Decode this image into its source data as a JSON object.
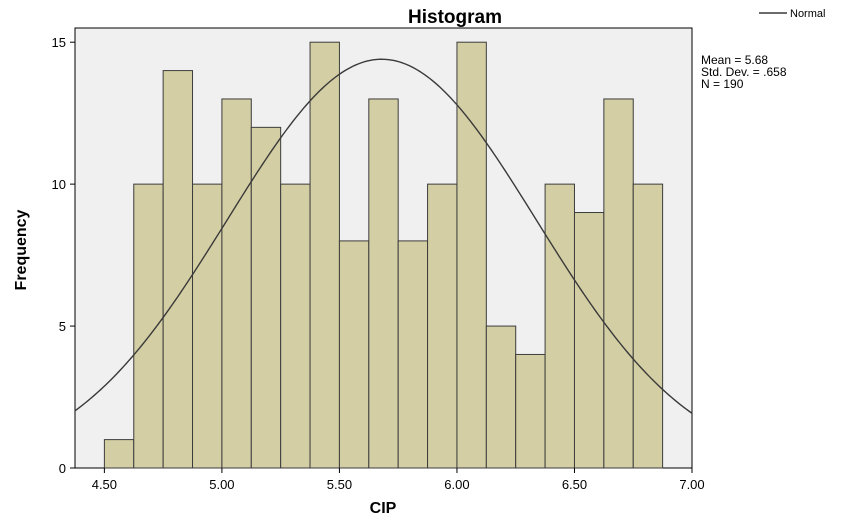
{
  "chart_data": {
    "type": "bar",
    "title": "Histogram",
    "xlabel": "CIP",
    "ylabel": "Frequency",
    "xlim": [
      4.375,
      7.0
    ],
    "ylim": [
      0,
      15.5
    ],
    "bin_width": 0.125,
    "bins": [
      {
        "start": 4.5,
        "end": 4.625,
        "count": 1
      },
      {
        "start": 4.625,
        "end": 4.75,
        "count": 10
      },
      {
        "start": 4.75,
        "end": 4.875,
        "count": 14
      },
      {
        "start": 4.875,
        "end": 5.0,
        "count": 10
      },
      {
        "start": 5.0,
        "end": 5.125,
        "count": 13
      },
      {
        "start": 5.125,
        "end": 5.25,
        "count": 12
      },
      {
        "start": 5.25,
        "end": 5.375,
        "count": 10
      },
      {
        "start": 5.375,
        "end": 5.5,
        "count": 15
      },
      {
        "start": 5.5,
        "end": 5.625,
        "count": 8
      },
      {
        "start": 5.625,
        "end": 5.75,
        "count": 13
      },
      {
        "start": 5.75,
        "end": 5.875,
        "count": 8
      },
      {
        "start": 5.875,
        "end": 6.0,
        "count": 10
      },
      {
        "start": 6.0,
        "end": 6.125,
        "count": 15
      },
      {
        "start": 6.125,
        "end": 6.25,
        "count": 5
      },
      {
        "start": 6.25,
        "end": 6.375,
        "count": 4
      },
      {
        "start": 6.375,
        "end": 6.5,
        "count": 10
      },
      {
        "start": 6.5,
        "end": 6.625,
        "count": 9
      },
      {
        "start": 6.625,
        "end": 6.75,
        "count": 13
      },
      {
        "start": 6.75,
        "end": 6.875,
        "count": 10
      }
    ],
    "x_ticks": [
      4.5,
      5.0,
      5.5,
      6.0,
      6.5,
      7.0
    ],
    "x_tick_labels": [
      "4.50",
      "5.00",
      "5.50",
      "6.00",
      "6.50",
      "7.00"
    ],
    "y_ticks": [
      0,
      5,
      10,
      15
    ],
    "y_tick_labels": [
      "0",
      "5",
      "10",
      "15"
    ],
    "normal_curve": {
      "mean": 5.68,
      "sd": 0.658,
      "n": 190
    },
    "stats_lines": [
      "Mean = 5.68",
      "Std. Dev. = .658",
      "N = 190"
    ],
    "legend": [
      {
        "name": "Normal"
      }
    ],
    "legend_position": "top-right",
    "grid": false,
    "colors": {
      "bar_fill": "#d3cea3",
      "bar_stroke": "#3c3c3c",
      "plot_bg": "#f0f0f0",
      "curve": "#3a3a3a",
      "axis": "#000000"
    }
  }
}
